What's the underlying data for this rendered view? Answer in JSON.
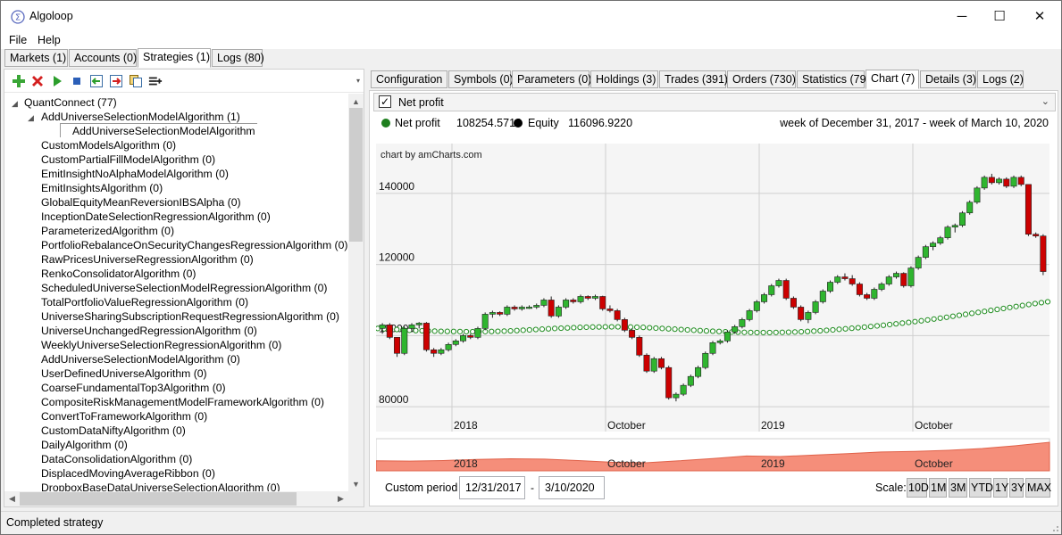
{
  "window": {
    "title": "Algoloop",
    "minimize": "─",
    "maximize": "☐",
    "close": "✕"
  },
  "menu": [
    "File",
    "Help"
  ],
  "main_tabs": [
    "Markets (1)",
    "Accounts (0)",
    "Strategies (1)",
    "Logs (80)"
  ],
  "tree": {
    "root": "QuantConnect (77)",
    "expanded": "AddUniverseSelectionModelAlgorithm (1)",
    "child": "AddUniverseSelectionModelAlgorithm",
    "items": [
      "CustomModelsAlgorithm (0)",
      "CustomPartialFillModelAlgorithm (0)",
      "EmitInsightNoAlphaModelAlgorithm (0)",
      "EmitInsightsAlgorithm (0)",
      "GlobalEquityMeanReversionIBSAlpha (0)",
      "InceptionDateSelectionRegressionAlgorithm (0)",
      "ParameterizedAlgorithm (0)",
      "PortfolioRebalanceOnSecurityChangesRegressionAlgorithm (0)",
      "RawPricesUniverseRegressionAlgorithm (0)",
      "RenkoConsolidatorAlgorithm (0)",
      "ScheduledUniverseSelectionModelRegressionAlgorithm (0)",
      "TotalPortfolioValueRegressionAlgorithm (0)",
      "UniverseSharingSubscriptionRequestRegressionAlgorithm (0)",
      "UniverseUnchangedRegressionAlgorithm (0)",
      "WeeklyUniverseSelectionRegressionAlgorithm (0)",
      "AddUniverseSelectionModelAlgorithm (0)",
      "UserDefinedUniverseAlgorithm (0)",
      "CoarseFundamentalTop3Algorithm (0)",
      "CompositeRiskManagementModelFrameworkAlgorithm (0)",
      "ConvertToFrameworkAlgorithm (0)",
      "CustomDataNiftyAlgorithm (0)",
      "DailyAlgorithm (0)",
      "DataConsolidationAlgorithm (0)",
      "DisplacedMovingAverageRibbon (0)",
      "DropboxBaseDataUniverseSelectionAlgorithm (0)"
    ]
  },
  "detail_tabs": [
    "Configuration",
    "Symbols (0)",
    "Parameters (0)",
    "Holdings (3)",
    "Trades (391)",
    "Orders (730)",
    "Statistics (79)",
    "Chart (7)",
    "Details (3)",
    "Logs (2)"
  ],
  "chart_panel": {
    "series_selector": "Net profit",
    "legend": [
      {
        "label": "Net profit",
        "value": "108254.5713",
        "color": "#1e7f1e"
      },
      {
        "label": "Equity",
        "value": "116096.9220",
        "color": "#000000"
      }
    ],
    "period_label": "week of December 31, 2017 - week of March 10, 2020",
    "credit": "chart by amCharts.com",
    "custom_period_label": "Custom period",
    "from_date": "12/31/2017",
    "dash": "-",
    "to_date": "3/10/2020",
    "scale_label": "Scale:",
    "scale_buttons": [
      "10D",
      "1M",
      "3M",
      "YTD",
      "1Y",
      "3Y",
      "MAX"
    ]
  },
  "chart_data": {
    "type": "candlestick",
    "title": "",
    "y_ticks": [
      "80000",
      "100000",
      "120000",
      "140000"
    ],
    "ylim": [
      71000,
      152000
    ],
    "x_ticks": [
      "2018",
      "October",
      "2019",
      "October"
    ],
    "series": [
      {
        "name": "Net profit",
        "kind": "candlestick",
        "up_color": "#2fb52f",
        "down_color": "#cc0000",
        "ohlc": [
          [
            100000,
            101500,
            98500,
            101000
          ],
          [
            101000,
            101500,
            97000,
            97500
          ],
          [
            97500,
            97500,
            92000,
            93000
          ],
          [
            93000,
            100500,
            92500,
            100000
          ],
          [
            100000,
            101500,
            99000,
            101000
          ],
          [
            101000,
            101800,
            100000,
            101500
          ],
          [
            101500,
            101800,
            93500,
            94000
          ],
          [
            94000,
            94500,
            92000,
            93000
          ],
          [
            93000,
            94500,
            92500,
            94000
          ],
          [
            94000,
            96000,
            93500,
            95500
          ],
          [
            95500,
            97000,
            95000,
            96500
          ],
          [
            96500,
            98500,
            96000,
            98000
          ],
          [
            98000,
            98500,
            97000,
            97500
          ],
          [
            97500,
            100500,
            97000,
            100000
          ],
          [
            100000,
            104500,
            99500,
            104000
          ],
          [
            104000,
            105000,
            103000,
            104500
          ],
          [
            104500,
            104800,
            103500,
            104000
          ],
          [
            104000,
            106500,
            103500,
            106000
          ],
          [
            106000,
            106500,
            105000,
            105500
          ],
          [
            105500,
            106500,
            105000,
            106000
          ],
          [
            106000,
            106500,
            105500,
            106000
          ],
          [
            106000,
            107000,
            105500,
            106500
          ],
          [
            106500,
            108500,
            106000,
            108000
          ],
          [
            108000,
            109000,
            103000,
            103500
          ],
          [
            103500,
            106500,
            103000,
            106000
          ],
          [
            106000,
            108500,
            105500,
            108000
          ],
          [
            108000,
            108500,
            107000,
            107500
          ],
          [
            107500,
            109500,
            107000,
            109000
          ],
          [
            109000,
            109300,
            108000,
            108500
          ],
          [
            108500,
            109500,
            108000,
            109000
          ],
          [
            109000,
            109200,
            105000,
            105500
          ],
          [
            105500,
            106500,
            104500,
            105000
          ],
          [
            105000,
            105500,
            102000,
            102500
          ],
          [
            102500,
            103000,
            99000,
            99500
          ],
          [
            99500,
            100000,
            97000,
            97500
          ],
          [
            97500,
            98000,
            92000,
            92500
          ],
          [
            92500,
            93000,
            87500,
            88000
          ],
          [
            88000,
            92000,
            87500,
            91500
          ],
          [
            91500,
            92000,
            88500,
            89000
          ],
          [
            89000,
            89500,
            80000,
            80500
          ],
          [
            80500,
            82000,
            79500,
            81500
          ],
          [
            81500,
            84500,
            81000,
            84000
          ],
          [
            84000,
            87000,
            83500,
            86500
          ],
          [
            86500,
            89500,
            86000,
            89000
          ],
          [
            89000,
            93500,
            88500,
            93000
          ],
          [
            93000,
            96500,
            92500,
            96000
          ],
          [
            96000,
            97000,
            95500,
            96500
          ],
          [
            96500,
            99500,
            96000,
            99000
          ],
          [
            99000,
            101000,
            98500,
            100500
          ],
          [
            100500,
            103000,
            100000,
            102500
          ],
          [
            102500,
            105500,
            102000,
            105000
          ],
          [
            105000,
            108000,
            104500,
            107500
          ],
          [
            107500,
            110000,
            107000,
            109500
          ],
          [
            109500,
            112500,
            109000,
            112000
          ],
          [
            112000,
            114000,
            111500,
            113500
          ],
          [
            113500,
            114000,
            108000,
            108500
          ],
          [
            108500,
            109000,
            105500,
            106000
          ],
          [
            106000,
            106500,
            102000,
            102500
          ],
          [
            102500,
            105000,
            101500,
            104500
          ],
          [
            104500,
            108000,
            104000,
            107500
          ],
          [
            107500,
            111000,
            107000,
            110500
          ],
          [
            110500,
            113500,
            110000,
            113000
          ],
          [
            113000,
            115000,
            112500,
            114500
          ],
          [
            114500,
            115500,
            113500,
            114000
          ],
          [
            114000,
            115000,
            112000,
            112500
          ],
          [
            112500,
            113000,
            109000,
            109500
          ],
          [
            109500,
            110000,
            108000,
            108500
          ],
          [
            108500,
            111500,
            108000,
            111000
          ],
          [
            111000,
            113000,
            110500,
            112500
          ],
          [
            112500,
            115000,
            112000,
            114500
          ],
          [
            114500,
            116000,
            114000,
            115500
          ],
          [
            115500,
            115800,
            111500,
            112000
          ],
          [
            112000,
            117500,
            111500,
            117000
          ],
          [
            117000,
            120500,
            116500,
            120000
          ],
          [
            120000,
            123500,
            119500,
            123000
          ],
          [
            123000,
            124500,
            122000,
            124000
          ],
          [
            124000,
            126000,
            123500,
            125500
          ],
          [
            125500,
            129000,
            125000,
            128500
          ],
          [
            128500,
            129500,
            127000,
            129000
          ],
          [
            129000,
            133000,
            128500,
            132500
          ],
          [
            132500,
            136000,
            132000,
            135500
          ],
          [
            135500,
            140000,
            135000,
            139500
          ],
          [
            139500,
            143000,
            139000,
            142500
          ],
          [
            142500,
            143500,
            140500,
            141000
          ],
          [
            141000,
            142500,
            140500,
            142000
          ],
          [
            142000,
            142500,
            139500,
            140000
          ],
          [
            140000,
            143000,
            139500,
            142500
          ],
          [
            142500,
            143000,
            140000,
            140500
          ],
          [
            140500,
            140500,
            126000,
            126500
          ],
          [
            126500,
            127000,
            125500,
            126000
          ],
          [
            126000,
            126500,
            115000,
            116000
          ]
        ]
      },
      {
        "name": "Equity",
        "kind": "line-markers",
        "color": "#1e8c1e",
        "values": [
          100000,
          99800,
          99600,
          99400,
          99300,
          99200,
          99150,
          99100,
          99100,
          99150,
          99250,
          99400,
          99600,
          99800,
          100000,
          100150,
          100300,
          100400,
          100450,
          100450,
          100400,
          100300,
          100100,
          99900,
          99700,
          99500,
          99300,
          99150,
          99000,
          98900,
          98850,
          98850,
          98900,
          99000,
          99150,
          99350,
          99600,
          99900,
          100200,
          100550,
          100900,
          101300,
          101700,
          102150,
          102650,
          103150,
          103700,
          104250,
          104800,
          105350,
          105900,
          106450,
          107000,
          107500
        ]
      }
    ],
    "navigator": {
      "type": "area",
      "color": "#f58e7a",
      "x_ticks": [
        "2018",
        "October",
        "2019",
        "October"
      ],
      "values": [
        0.35,
        0.34,
        0.36,
        0.4,
        0.42,
        0.41,
        0.36,
        0.3,
        0.28,
        0.35,
        0.43,
        0.52,
        0.5,
        0.55,
        0.6,
        0.66,
        0.68,
        0.72,
        0.78,
        0.88,
        1.0
      ]
    }
  },
  "status": {
    "text": "Completed strategy"
  }
}
